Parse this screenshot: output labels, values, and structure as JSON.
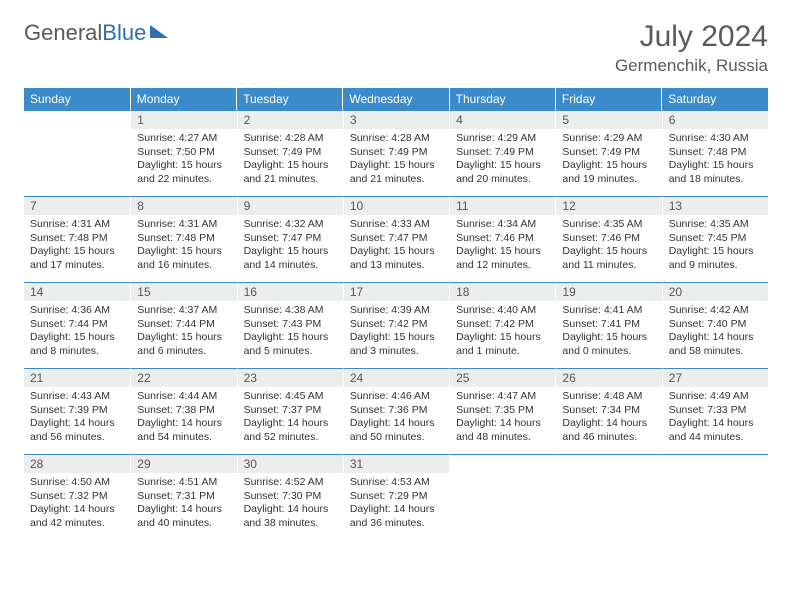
{
  "brand": {
    "part1": "General",
    "part2": "Blue"
  },
  "title": "July 2024",
  "location": "Germenchik, Russia",
  "colors": {
    "header_bg": "#3b8bca",
    "header_text": "#ffffff",
    "daynum_bg": "#eceded",
    "border": "#3b8bca",
    "text": "#333333",
    "muted": "#5a5a5a"
  },
  "weekdays": [
    "Sunday",
    "Monday",
    "Tuesday",
    "Wednesday",
    "Thursday",
    "Friday",
    "Saturday"
  ],
  "first_weekday_index": 1,
  "days": [
    {
      "n": 1,
      "sr": "4:27 AM",
      "ss": "7:50 PM",
      "dl": "15 hours and 22 minutes."
    },
    {
      "n": 2,
      "sr": "4:28 AM",
      "ss": "7:49 PM",
      "dl": "15 hours and 21 minutes."
    },
    {
      "n": 3,
      "sr": "4:28 AM",
      "ss": "7:49 PM",
      "dl": "15 hours and 21 minutes."
    },
    {
      "n": 4,
      "sr": "4:29 AM",
      "ss": "7:49 PM",
      "dl": "15 hours and 20 minutes."
    },
    {
      "n": 5,
      "sr": "4:29 AM",
      "ss": "7:49 PM",
      "dl": "15 hours and 19 minutes."
    },
    {
      "n": 6,
      "sr": "4:30 AM",
      "ss": "7:48 PM",
      "dl": "15 hours and 18 minutes."
    },
    {
      "n": 7,
      "sr": "4:31 AM",
      "ss": "7:48 PM",
      "dl": "15 hours and 17 minutes."
    },
    {
      "n": 8,
      "sr": "4:31 AM",
      "ss": "7:48 PM",
      "dl": "15 hours and 16 minutes."
    },
    {
      "n": 9,
      "sr": "4:32 AM",
      "ss": "7:47 PM",
      "dl": "15 hours and 14 minutes."
    },
    {
      "n": 10,
      "sr": "4:33 AM",
      "ss": "7:47 PM",
      "dl": "15 hours and 13 minutes."
    },
    {
      "n": 11,
      "sr": "4:34 AM",
      "ss": "7:46 PM",
      "dl": "15 hours and 12 minutes."
    },
    {
      "n": 12,
      "sr": "4:35 AM",
      "ss": "7:46 PM",
      "dl": "15 hours and 11 minutes."
    },
    {
      "n": 13,
      "sr": "4:35 AM",
      "ss": "7:45 PM",
      "dl": "15 hours and 9 minutes."
    },
    {
      "n": 14,
      "sr": "4:36 AM",
      "ss": "7:44 PM",
      "dl": "15 hours and 8 minutes."
    },
    {
      "n": 15,
      "sr": "4:37 AM",
      "ss": "7:44 PM",
      "dl": "15 hours and 6 minutes."
    },
    {
      "n": 16,
      "sr": "4:38 AM",
      "ss": "7:43 PM",
      "dl": "15 hours and 5 minutes."
    },
    {
      "n": 17,
      "sr": "4:39 AM",
      "ss": "7:42 PM",
      "dl": "15 hours and 3 minutes."
    },
    {
      "n": 18,
      "sr": "4:40 AM",
      "ss": "7:42 PM",
      "dl": "15 hours and 1 minute."
    },
    {
      "n": 19,
      "sr": "4:41 AM",
      "ss": "7:41 PM",
      "dl": "15 hours and 0 minutes."
    },
    {
      "n": 20,
      "sr": "4:42 AM",
      "ss": "7:40 PM",
      "dl": "14 hours and 58 minutes."
    },
    {
      "n": 21,
      "sr": "4:43 AM",
      "ss": "7:39 PM",
      "dl": "14 hours and 56 minutes."
    },
    {
      "n": 22,
      "sr": "4:44 AM",
      "ss": "7:38 PM",
      "dl": "14 hours and 54 minutes."
    },
    {
      "n": 23,
      "sr": "4:45 AM",
      "ss": "7:37 PM",
      "dl": "14 hours and 52 minutes."
    },
    {
      "n": 24,
      "sr": "4:46 AM",
      "ss": "7:36 PM",
      "dl": "14 hours and 50 minutes."
    },
    {
      "n": 25,
      "sr": "4:47 AM",
      "ss": "7:35 PM",
      "dl": "14 hours and 48 minutes."
    },
    {
      "n": 26,
      "sr": "4:48 AM",
      "ss": "7:34 PM",
      "dl": "14 hours and 46 minutes."
    },
    {
      "n": 27,
      "sr": "4:49 AM",
      "ss": "7:33 PM",
      "dl": "14 hours and 44 minutes."
    },
    {
      "n": 28,
      "sr": "4:50 AM",
      "ss": "7:32 PM",
      "dl": "14 hours and 42 minutes."
    },
    {
      "n": 29,
      "sr": "4:51 AM",
      "ss": "7:31 PM",
      "dl": "14 hours and 40 minutes."
    },
    {
      "n": 30,
      "sr": "4:52 AM",
      "ss": "7:30 PM",
      "dl": "14 hours and 38 minutes."
    },
    {
      "n": 31,
      "sr": "4:53 AM",
      "ss": "7:29 PM",
      "dl": "14 hours and 36 minutes."
    }
  ],
  "labels": {
    "sunrise": "Sunrise:",
    "sunset": "Sunset:",
    "daylight": "Daylight:"
  }
}
